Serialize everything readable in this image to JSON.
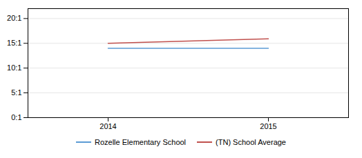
{
  "chart_data": {
    "type": "line",
    "x": [
      2014,
      2015
    ],
    "series": [
      {
        "name": "Rozelle Elementary School",
        "color": "#5b9bd5",
        "values": [
          14.0,
          14.0
        ]
      },
      {
        "name": "(TN) School Average",
        "color": "#c0504d",
        "values": [
          15.0,
          15.9
        ]
      }
    ],
    "xlim": [
      2013.5,
      2015.5
    ],
    "xticks": [
      2014,
      2015
    ],
    "ylim": [
      0,
      22
    ],
    "yticks": [
      {
        "value": 0,
        "label": "0:1"
      },
      {
        "value": 5,
        "label": "5:1"
      },
      {
        "value": 10,
        "label": "10:1"
      },
      {
        "value": 15,
        "label": "15:1"
      },
      {
        "value": 20,
        "label": "20:1"
      }
    ],
    "grid": "y",
    "legend": "bottom"
  }
}
